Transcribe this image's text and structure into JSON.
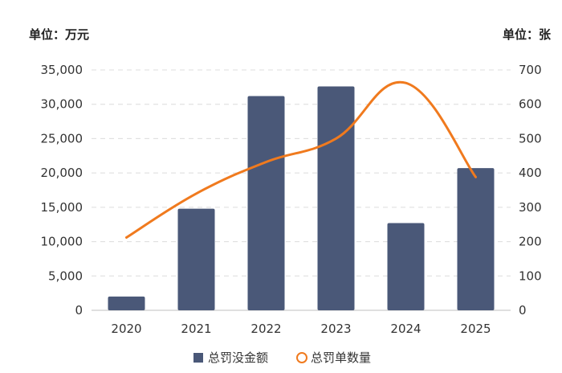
{
  "chart_data": {
    "type": "bar",
    "categories": [
      "2020",
      "2021",
      "2022",
      "2023",
      "2024",
      "2025"
    ],
    "left_axis": {
      "unit_label": "单位：万元",
      "ylim": [
        0,
        35000
      ],
      "ticks": [
        0,
        5000,
        10000,
        15000,
        20000,
        25000,
        30000,
        35000
      ],
      "tick_labels": [
        "0",
        "5,000",
        "10,000",
        "15,000",
        "20,000",
        "25,000",
        "30,000",
        "35,000"
      ]
    },
    "right_axis": {
      "unit_label": "单位：张",
      "ylim": [
        0,
        700
      ],
      "ticks": [
        0,
        100,
        200,
        300,
        400,
        500,
        600,
        700
      ],
      "tick_labels": [
        "0",
        "100",
        "200",
        "300",
        "400",
        "500",
        "600",
        "700"
      ]
    },
    "series": [
      {
        "name": "总罚没金额",
        "type": "bar",
        "axis": "left",
        "color": "#4a5878",
        "values": [
          2000,
          14800,
          31200,
          32600,
          12700,
          20700
        ]
      },
      {
        "name": "总罚单数量",
        "type": "line",
        "axis": "right",
        "color": "#f07a1e",
        "values": [
          212,
          340,
          432,
          500,
          662,
          388
        ]
      }
    ],
    "grid": true,
    "legend_position": "bottom-center"
  }
}
